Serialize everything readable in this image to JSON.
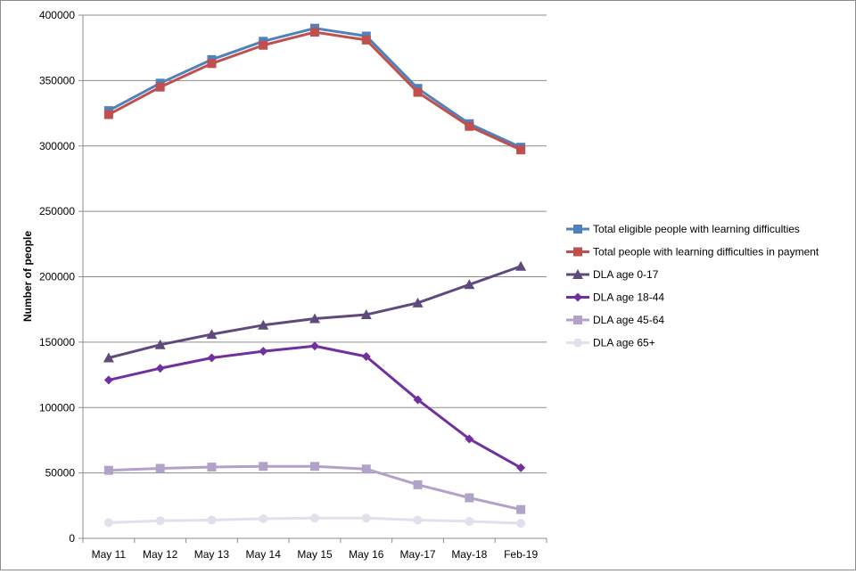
{
  "chart_data": {
    "type": "line",
    "title": "",
    "xlabel": "",
    "ylabel": "Number of people",
    "ylim": [
      0,
      400000
    ],
    "yticks": [
      0,
      50000,
      100000,
      150000,
      200000,
      250000,
      300000,
      350000,
      400000
    ],
    "ytick_labels": [
      "0",
      "50000",
      "100000",
      "150000",
      "200000",
      "250000",
      "300000",
      "350000",
      "400000"
    ],
    "grid": true,
    "legend_position": "right",
    "categories": [
      "May 11",
      "May 12",
      "May 13",
      "May 14",
      "May 15",
      "May 16",
      "May-17",
      "May-18",
      "Feb-19"
    ],
    "series": [
      {
        "name": "Total eligible people with learning difficulties",
        "color": "#4f81bd",
        "marker": "square",
        "values": [
          327000,
          348000,
          366000,
          380000,
          390000,
          384000,
          344000,
          317000,
          299000
        ]
      },
      {
        "name": "Total people with learning difficulties in payment",
        "color": "#c0504d",
        "marker": "square",
        "values": [
          324000,
          345000,
          363000,
          377000,
          387000,
          381000,
          341000,
          315000,
          297000
        ]
      },
      {
        "name": "DLA age 0-17",
        "color": "#604a7b",
        "marker": "triangle",
        "values": [
          138000,
          148000,
          156000,
          163000,
          168000,
          171000,
          180000,
          194000,
          208000
        ]
      },
      {
        "name": "DLA age 18-44",
        "color": "#7030a0",
        "marker": "diamond",
        "values": [
          121000,
          130000,
          138000,
          143000,
          147000,
          139000,
          106000,
          76000,
          54000
        ]
      },
      {
        "name": "DLA age 45-64",
        "color": "#b3a2c7",
        "marker": "square",
        "values": [
          52000,
          53500,
          54500,
          55000,
          55000,
          53000,
          41000,
          31000,
          22000
        ]
      },
      {
        "name": "DLA age 65+",
        "color": "#e4dfec",
        "marker": "circle",
        "values": [
          12000,
          13500,
          14000,
          15000,
          15500,
          15500,
          14000,
          13000,
          11500
        ]
      }
    ]
  }
}
